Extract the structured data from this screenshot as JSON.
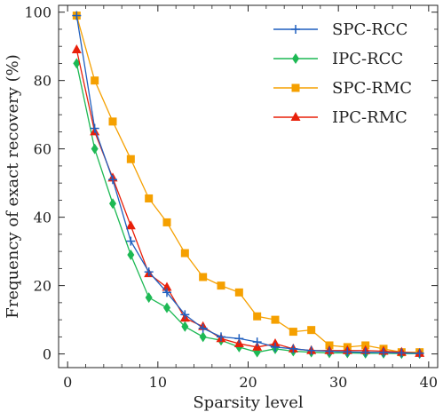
{
  "chart_data": {
    "type": "line",
    "title": "",
    "xlabel": "Sparsity level",
    "ylabel": "Frequency of exact recovery (%)",
    "xlim": [
      -1,
      41
    ],
    "ylim": [
      -4,
      102
    ],
    "xticks": [
      0,
      10,
      20,
      30,
      40
    ],
    "yticks": [
      0,
      20,
      40,
      60,
      80,
      100
    ],
    "grid": false,
    "legend_position": "top-right",
    "x": [
      1,
      3,
      5,
      7,
      9,
      11,
      13,
      15,
      17,
      19,
      21,
      23,
      25,
      27,
      29,
      31,
      33,
      35,
      37,
      39
    ],
    "series": [
      {
        "name": "SPC-RCC",
        "color": "#1f5fbf",
        "marker": "plus",
        "values": [
          99,
          66,
          51,
          33,
          24,
          18,
          11.5,
          7.5,
          5,
          4.5,
          3.5,
          2,
          1.5,
          1,
          0.8,
          0.6,
          0.5,
          0.4,
          0.3,
          0.2
        ]
      },
      {
        "name": "IPC-RCC",
        "color": "#1db954",
        "marker": "diamond",
        "values": [
          85,
          60,
          44,
          29,
          16.5,
          13.5,
          8,
          5,
          4,
          2,
          0.5,
          1.5,
          0.8,
          0.5,
          0.3,
          0.3,
          0.2,
          0.2,
          0.1,
          0.1
        ]
      },
      {
        "name": "SPC-RMC",
        "color": "#f5a000",
        "marker": "square",
        "values": [
          99,
          80,
          68,
          57,
          45.5,
          38.5,
          29.5,
          22.5,
          20,
          18,
          11,
          10,
          6.5,
          7,
          2.5,
          2,
          2.5,
          1.5,
          0.5,
          0.5
        ]
      },
      {
        "name": "IPC-RMC",
        "color": "#e8200a",
        "marker": "triangle",
        "values": [
          89,
          65,
          51.5,
          37.5,
          23.5,
          19.5,
          10.5,
          8,
          4.5,
          3,
          2,
          3,
          1.5,
          1,
          1,
          1,
          1,
          0.8,
          0.5,
          0.2
        ]
      }
    ]
  }
}
